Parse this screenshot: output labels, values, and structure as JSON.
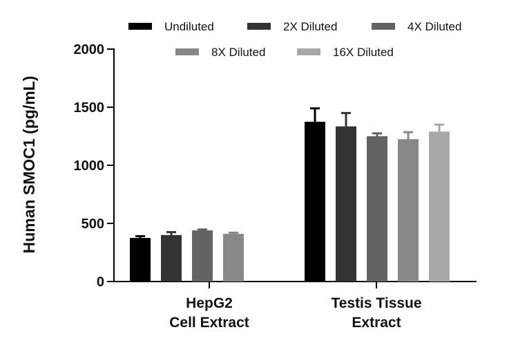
{
  "chart_data": {
    "type": "bar",
    "ylabel": "Human SMOC1 (pg/mL)",
    "xlabel": "",
    "ylim": [
      0,
      2000
    ],
    "yticks": [
      "0",
      "500",
      "1000",
      "1500",
      "2000"
    ],
    "ytick_values": [
      0,
      500,
      1000,
      1500,
      2000
    ],
    "categories": [
      {
        "lines": [
          "HepG2",
          "Cell Extract"
        ]
      },
      {
        "lines": [
          "Testis Tissue",
          "Extract"
        ]
      }
    ],
    "legend_position": "top",
    "series": [
      {
        "name": "Undiluted",
        "color": "#000000",
        "values": [
          375,
          1375
        ],
        "errors": [
          15,
          115
        ]
      },
      {
        "name": "2X Diluted",
        "color": "#333333",
        "values": [
          400,
          1335
        ],
        "errors": [
          25,
          115
        ]
      },
      {
        "name": "4X Diluted",
        "color": "#636363",
        "values": [
          440,
          1250
        ],
        "errors": [
          8,
          25
        ]
      },
      {
        "name": "8X Diluted",
        "color": "#888888",
        "values": [
          410,
          1225
        ],
        "errors": [
          10,
          60
        ]
      },
      {
        "name": "16X Diluted",
        "color": "#a8a8a8",
        "values": [
          null,
          1290
        ],
        "errors": [
          null,
          60
        ]
      }
    ]
  }
}
